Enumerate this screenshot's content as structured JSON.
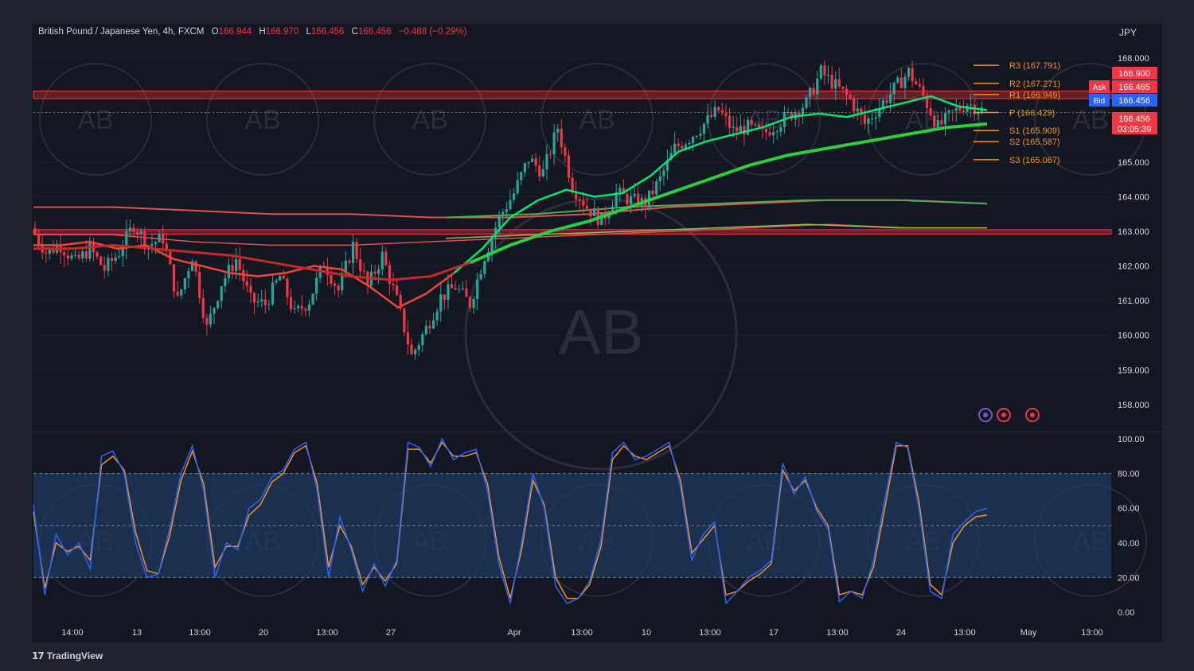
{
  "symbol": {
    "name": "British Pound / Japanese Yen, 4h, FXCM",
    "open_label": "O",
    "open": "166.944",
    "high_label": "H",
    "high": "166.970",
    "low_label": "L",
    "low": "166.456",
    "close_label": "C",
    "close": "166.456",
    "change": "−0.488 (−0.29%)"
  },
  "currency": "JPY",
  "branding": "TradingView",
  "watermark_text": "AB",
  "colors": {
    "up": "#26a69a",
    "down": "#f23645",
    "pivot": "#f7931a",
    "stoch_k": "#2962ff",
    "stoch_d": "#f7931a",
    "ema_fast": "#00e676",
    "ema_slow": "#f44336",
    "background": "#131722"
  },
  "chart_data": [
    {
      "type": "candlestick",
      "ylim": [
        157.4,
        168.3
      ],
      "yticks": [
        "168.000",
        "165.000",
        "164.000",
        "163.000",
        "162.000",
        "161.000",
        "160.000",
        "159.000",
        "158.000"
      ],
      "x_labels": [
        "14:00",
        "13",
        "13:00",
        "20",
        "13:00",
        "27",
        "Apr",
        "13:00",
        "10",
        "13:00",
        "17",
        "13:00",
        "24",
        "13:00",
        "May",
        "13:00"
      ],
      "price_tags": [
        {
          "label": "",
          "value": "166.900",
          "color": "#f23645"
        },
        {
          "label": "Ask",
          "value": "166.465",
          "color": "#f23645"
        },
        {
          "label": "Bid",
          "value": "166.456",
          "color": "#2962ff"
        },
        {
          "label": "",
          "value": "166.456",
          "sub": "03:05:39",
          "color": "#f23645"
        }
      ],
      "pivots": [
        {
          "label": "R3 (167.791)",
          "value": 167.791
        },
        {
          "label": "R2 (167.271)",
          "value": 167.271
        },
        {
          "label": "R1 (166.949)",
          "value": 166.949
        },
        {
          "label": "P (166.429)",
          "value": 166.429
        },
        {
          "label": "S1 (165.909)",
          "value": 165.909
        },
        {
          "label": "S2 (165.587)",
          "value": 165.587
        },
        {
          "label": "S3 (165.067)",
          "value": 165.067
        }
      ],
      "zones": [
        {
          "from": 166.83,
          "to": 167.05
        },
        {
          "from": 162.92,
          "to": 163.05
        }
      ],
      "close_path": [
        163.1,
        162.4,
        162.6,
        162.1,
        162.5,
        161.9,
        162.4,
        163.2,
        162.6,
        162.8,
        161.0,
        162.3,
        160.2,
        161.5,
        162.2,
        161.0,
        160.9,
        161.7,
        160.6,
        161.0,
        162.1,
        161.3,
        162.6,
        161.4,
        162.3,
        161.0,
        159.4,
        160.2,
        161.1,
        161.4,
        160.9,
        162.3,
        163.4,
        164.1,
        165.1,
        164.7,
        166.0,
        164.3,
        163.7,
        163.3,
        164.1,
        163.9,
        163.8,
        164.5,
        165.4,
        165.7,
        166.1,
        166.5,
        165.9,
        166.0,
        165.8,
        166.1,
        166.4,
        166.7,
        167.6,
        167.2,
        166.8,
        166.1,
        166.6,
        167.1,
        167.6,
        166.9,
        166.0,
        166.4,
        166.7,
        166.5
      ],
      "ema_fast": [
        162.6,
        162.6,
        162.7,
        162.5,
        162.6,
        162.2,
        162.0,
        161.8,
        161.7,
        161.8,
        162.0,
        161.9,
        161.4,
        160.8,
        161.2,
        161.8,
        162.5,
        163.4,
        163.9,
        164.2,
        164.0,
        164.1,
        164.6,
        165.3,
        165.6,
        165.8,
        166.0,
        166.3,
        166.4,
        166.3,
        166.5,
        166.7,
        166.9,
        166.6,
        166.5
      ],
      "ema_slow": [
        162.5,
        162.5,
        162.6,
        162.5,
        162.4,
        162.3,
        162.1,
        161.9,
        161.7,
        161.6,
        161.7,
        162.1,
        162.6,
        163.0,
        163.3,
        163.7,
        164.1,
        164.5,
        164.9,
        165.2,
        165.4,
        165.6,
        165.8,
        166.0,
        166.1
      ],
      "ma_long1": [
        163.7,
        163.7,
        163.6,
        163.5,
        163.5,
        163.4,
        163.4,
        163.5,
        163.7,
        163.8,
        163.9,
        163.9,
        163.8
      ],
      "ma_long2": [
        162.9,
        162.9,
        162.7,
        162.6,
        162.6,
        162.7,
        162.8,
        162.9,
        163.0,
        163.1,
        163.2,
        163.1,
        163.1
      ]
    },
    {
      "type": "line",
      "title": "",
      "ylim": [
        0,
        100
      ],
      "yticks": [
        "100.00",
        "80.00",
        "60.00",
        "40.00",
        "20.00",
        "0.00"
      ],
      "band": [
        20,
        80
      ],
      "series": [
        {
          "values": [
            62,
            10,
            45,
            33,
            40,
            25,
            90,
            93,
            80,
            40,
            20,
            22,
            48,
            80,
            96,
            70,
            20,
            40,
            36,
            60,
            65,
            78,
            82,
            94,
            98,
            70,
            20,
            55,
            36,
            12,
            28,
            15,
            30,
            98,
            95,
            84,
            100,
            88,
            92,
            94,
            70,
            28,
            5,
            40,
            80,
            60,
            15,
            5,
            8,
            18,
            42,
            92,
            98,
            88,
            90,
            94,
            98,
            72,
            30,
            45,
            52,
            5,
            12,
            20,
            24,
            30,
            86,
            68,
            78,
            58,
            48,
            6,
            12,
            8,
            30,
            65,
            98,
            95,
            60,
            12,
            8,
            45,
            52,
            58,
            60
          ]
        },
        {
          "values": [
            58,
            14,
            40,
            35,
            38,
            30,
            85,
            90,
            82,
            46,
            24,
            22,
            44,
            76,
            93,
            74,
            26,
            38,
            38,
            56,
            62,
            75,
            80,
            92,
            96,
            74,
            26,
            50,
            38,
            16,
            26,
            18,
            28,
            94,
            94,
            86,
            98,
            90,
            90,
            92,
            74,
            32,
            8,
            36,
            76,
            62,
            20,
            8,
            8,
            16,
            38,
            88,
            96,
            90,
            88,
            92,
            96,
            76,
            34,
            42,
            50,
            10,
            12,
            18,
            22,
            28,
            82,
            70,
            76,
            60,
            50,
            10,
            12,
            10,
            26,
            60,
            96,
            96,
            64,
            16,
            10,
            40,
            50,
            55,
            56
          ]
        }
      ]
    }
  ],
  "toolbar_icons": [
    "lightning-icon",
    "target-icon",
    "target-icon"
  ]
}
